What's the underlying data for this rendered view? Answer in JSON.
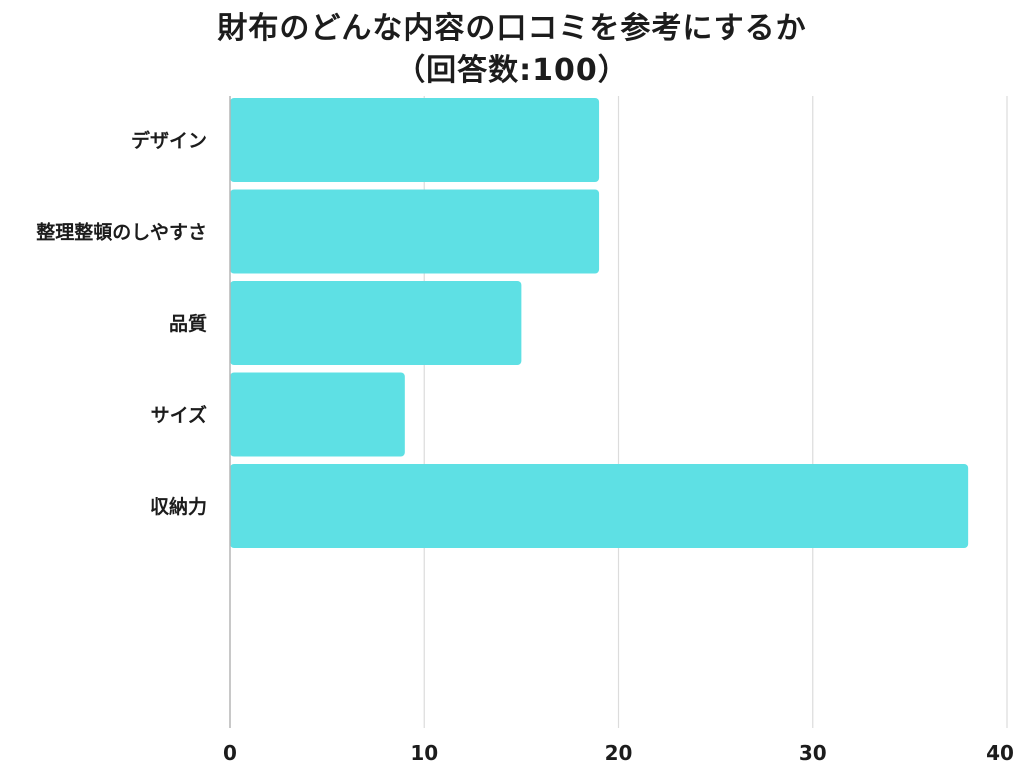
{
  "chart_data": {
    "type": "bar",
    "orientation": "horizontal",
    "title_line1": "財布のどんな内容の口コミを参考にするか",
    "title_line2": "（回答数:100）",
    "categories": [
      "デザイン",
      "整理整頓のしやすさ",
      "品質",
      "サイズ",
      "収納力"
    ],
    "values": [
      19,
      19,
      15,
      9,
      38
    ],
    "xlim": [
      0,
      40
    ],
    "xticks": [
      0,
      10,
      20,
      30,
      40
    ],
    "grid": true,
    "bar_color": "#5ee0e4",
    "grid_color": "#dcdcdc",
    "axis_color": "#b5b5b5"
  }
}
